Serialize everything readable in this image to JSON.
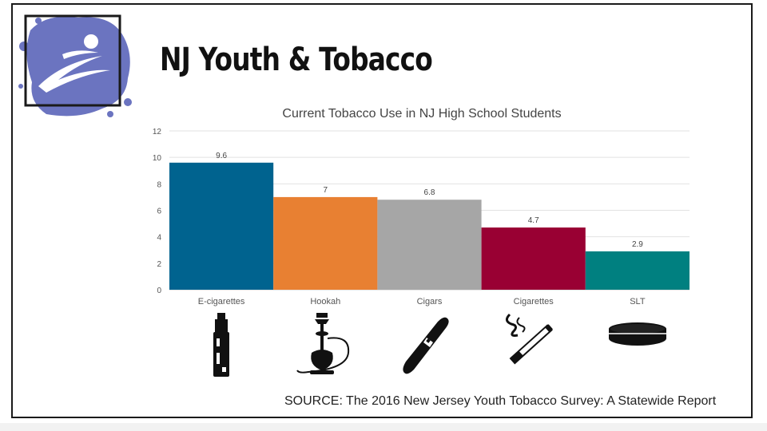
{
  "slide": {
    "title": "NJ Youth & Tobacco",
    "source": "SOURCE: The 2016 New Jersey Youth Tobacco Survey: A Statewide Report"
  },
  "colors": {
    "logo_blue": "#6b74c0",
    "e_cigarettes": "#00638f",
    "hookah": "#e88032",
    "cigars": "#a6a6a6",
    "cigarettes": "#990033",
    "slt": "#008080"
  },
  "icons": [
    "e-cigarette-icon",
    "hookah-icon",
    "cigar-icon",
    "cigarette-icon",
    "smokeless-tobacco-tin-icon"
  ],
  "chart_data": {
    "type": "bar",
    "title": "Current Tobacco Use in NJ High School Students",
    "categories": [
      "E-cigarettes",
      "Hookah",
      "Cigars",
      "Cigarettes",
      "SLT"
    ],
    "values": [
      9.6,
      7,
      6.8,
      4.7,
      2.9
    ],
    "value_labels": [
      "9.6",
      "7",
      "6.8",
      "4.7",
      "2.9"
    ],
    "bar_colors": [
      "#00638f",
      "#e88032",
      "#a6a6a6",
      "#990033",
      "#008080"
    ],
    "ylim": [
      0,
      12
    ],
    "yticks": [
      0,
      2,
      4,
      6,
      8,
      10,
      12
    ],
    "grid": true,
    "legend": "none",
    "xlabel": "",
    "ylabel": ""
  }
}
